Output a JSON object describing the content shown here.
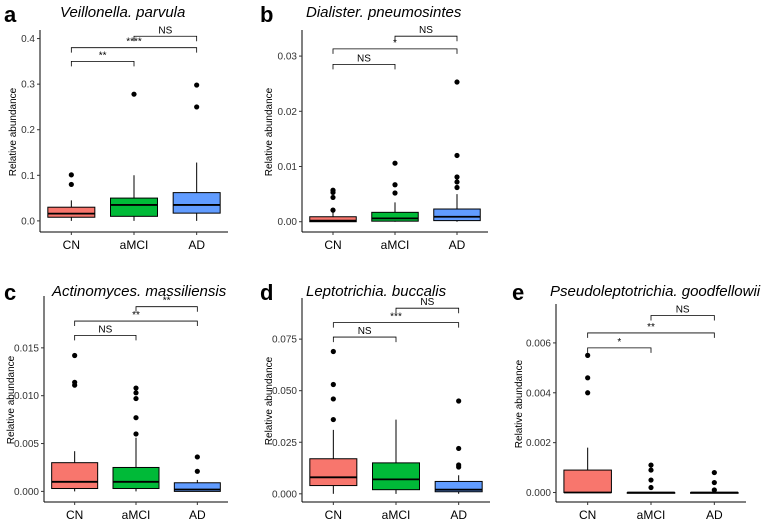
{
  "chart_data": [
    {
      "letter": "a",
      "type": "box",
      "title": "Veillonella. parvula",
      "ylabel": "Relative abundance",
      "categories": [
        "CN",
        "aMCI",
        "AD"
      ],
      "ylim": [
        -0.02,
        0.41
      ],
      "yticks": [
        "0.0",
        "0.1",
        "0.2",
        "0.3",
        "0.4"
      ],
      "ytick_values": [
        0,
        0.1,
        0.2,
        0.3,
        0.4
      ],
      "boxes": [
        {
          "group": "CN",
          "color": "#f8766d",
          "whisker_low": 0,
          "q1": 0.008,
          "median": 0.016,
          "q3": 0.03,
          "whisker_high": 0.045,
          "outliers": [
            0.08,
            0.101
          ]
        },
        {
          "group": "aMCI",
          "color": "#00ba38",
          "whisker_low": 0,
          "q1": 0.01,
          "median": 0.035,
          "q3": 0.05,
          "whisker_high": 0.1,
          "outliers": [
            0.278
          ]
        },
        {
          "group": "AD",
          "color": "#619cff",
          "whisker_low": 0,
          "q1": 0.017,
          "median": 0.035,
          "q3": 0.062,
          "whisker_high": 0.128,
          "outliers": [
            0.25,
            0.298
          ]
        }
      ],
      "comparisons": [
        {
          "from": "CN",
          "to": "aMCI",
          "label": "**",
          "y": 0.35
        },
        {
          "from": "CN",
          "to": "AD",
          "label": "****",
          "y": 0.38
        },
        {
          "from": "aMCI",
          "to": "AD",
          "label": "NS",
          "y": 0.405
        }
      ]
    },
    {
      "letter": "b",
      "type": "box",
      "title": "Dialister. pneumosintes",
      "ylabel": "Relative abundance",
      "categories": [
        "CN",
        "aMCI",
        "AD"
      ],
      "ylim": [
        -0.0015,
        0.034
      ],
      "yticks": [
        "0.00",
        "0.01",
        "0.02",
        "0.03"
      ],
      "ytick_values": [
        0,
        0.01,
        0.02,
        0.03
      ],
      "boxes": [
        {
          "group": "CN",
          "color": "#f8766d",
          "whisker_low": 0,
          "q1": 0.0,
          "median": 0.0002,
          "q3": 0.0009,
          "whisker_high": 0.002,
          "outliers": [
            0.0021,
            0.0044,
            0.0053,
            0.0057
          ]
        },
        {
          "group": "aMCI",
          "color": "#00ba38",
          "whisker_low": 0,
          "q1": 0.0001,
          "median": 0.0006,
          "q3": 0.0017,
          "whisker_high": 0.0035,
          "outliers": [
            0.0052,
            0.0067,
            0.0106
          ]
        },
        {
          "group": "AD",
          "color": "#619cff",
          "whisker_low": 0,
          "q1": 0.0002,
          "median": 0.0009,
          "q3": 0.0023,
          "whisker_high": 0.005,
          "outliers": [
            0.0062,
            0.0072,
            0.0081,
            0.012,
            0.0253
          ]
        }
      ],
      "comparisons": [
        {
          "from": "CN",
          "to": "aMCI",
          "label": "NS",
          "y": 0.0285
        },
        {
          "from": "CN",
          "to": "AD",
          "label": "*",
          "y": 0.0313
        },
        {
          "from": "aMCI",
          "to": "AD",
          "label": "NS",
          "y": 0.0336
        }
      ]
    },
    {
      "letter": "c",
      "type": "box",
      "title": "Actinomyces. massiliensis",
      "ylabel": "Relative abundance",
      "categories": [
        "CN",
        "aMCI",
        "AD"
      ],
      "ylim": [
        -0.0009,
        0.02
      ],
      "yticks": [
        "0.000",
        "0.005",
        "0.010",
        "0.015"
      ],
      "ytick_values": [
        0,
        0.005,
        0.01,
        0.015
      ],
      "boxes": [
        {
          "group": "CN",
          "color": "#f8766d",
          "whisker_low": 0,
          "q1": 0.0003,
          "median": 0.001,
          "q3": 0.003,
          "whisker_high": 0.0042,
          "outliers": [
            0.0111,
            0.0114,
            0.0142
          ]
        },
        {
          "group": "aMCI",
          "color": "#00ba38",
          "whisker_low": 0,
          "q1": 0.0003,
          "median": 0.001,
          "q3": 0.0025,
          "whisker_high": 0.0056,
          "outliers": [
            0.006,
            0.0077,
            0.0097,
            0.0103,
            0.0108
          ]
        },
        {
          "group": "AD",
          "color": "#619cff",
          "whisker_low": 0,
          "q1": 0.0,
          "median": 0.0002,
          "q3": 0.0009,
          "whisker_high": 0.0012,
          "outliers": [
            0.0021,
            0.0036
          ]
        }
      ],
      "comparisons": [
        {
          "from": "CN",
          "to": "aMCI",
          "label": "NS",
          "y": 0.0163
        },
        {
          "from": "CN",
          "to": "AD",
          "label": "**",
          "y": 0.0178
        },
        {
          "from": "aMCI",
          "to": "AD",
          "label": "**",
          "y": 0.0193
        }
      ]
    },
    {
      "letter": "d",
      "type": "box",
      "title": "Leptotrichia. buccalis",
      "ylabel": "Relative abundance",
      "categories": [
        "CN",
        "aMCI",
        "AD"
      ],
      "ylim": [
        -0.003,
        0.093
      ],
      "yticks": [
        "0.000",
        "0.025",
        "0.050",
        "0.075"
      ],
      "ytick_values": [
        0,
        0.025,
        0.05,
        0.075
      ],
      "boxes": [
        {
          "group": "CN",
          "color": "#f8766d",
          "whisker_low": 0,
          "q1": 0.004,
          "median": 0.008,
          "q3": 0.017,
          "whisker_high": 0.031,
          "outliers": [
            0.036,
            0.046,
            0.053,
            0.069
          ]
        },
        {
          "group": "aMCI",
          "color": "#00ba38",
          "whisker_low": 0,
          "q1": 0.002,
          "median": 0.007,
          "q3": 0.015,
          "whisker_high": 0.036,
          "outliers": []
        },
        {
          "group": "AD",
          "color": "#619cff",
          "whisker_low": 0,
          "q1": 0.001,
          "median": 0.002,
          "q3": 0.006,
          "whisker_high": 0.009,
          "outliers": [
            0.013,
            0.014,
            0.022,
            0.045
          ]
        }
      ],
      "comparisons": [
        {
          "from": "CN",
          "to": "aMCI",
          "label": "NS",
          "y": 0.076
        },
        {
          "from": "CN",
          "to": "AD",
          "label": "***",
          "y": 0.083
        },
        {
          "from": "aMCI",
          "to": "AD",
          "label": "NS",
          "y": 0.09
        }
      ]
    },
    {
      "letter": "e",
      "type": "box",
      "title": "Pseudoleptotrichia. goodfellowii",
      "ylabel": "Relative abundance",
      "categories": [
        "CN",
        "aMCI",
        "AD"
      ],
      "ylim": [
        -0.0003,
        0.0074
      ],
      "yticks": [
        "0.000",
        "0.002",
        "0.004",
        "0.006"
      ],
      "ytick_values": [
        0,
        0.002,
        0.004,
        0.006
      ],
      "boxes": [
        {
          "group": "CN",
          "color": "#f8766d",
          "whisker_low": 0,
          "q1": 0.0,
          "median": 0.0,
          "q3": 0.0009,
          "whisker_high": 0.0018,
          "outliers": [
            0.004,
            0.0046,
            0.0055
          ]
        },
        {
          "group": "aMCI",
          "color": "#00ba38",
          "whisker_low": 0,
          "q1": 0.0,
          "median": 0.0,
          "q3": 0.0,
          "whisker_high": 0.0,
          "outliers": [
            0.0002,
            0.0005,
            0.0009,
            0.0011
          ]
        },
        {
          "group": "AD",
          "color": "#619cff",
          "whisker_low": 0,
          "q1": 0.0,
          "median": 0.0,
          "q3": 0.0,
          "whisker_high": 0.0,
          "outliers": [
            0.0001,
            0.0004,
            0.0008
          ]
        }
      ],
      "comparisons": [
        {
          "from": "CN",
          "to": "aMCI",
          "label": "*",
          "y": 0.0058
        },
        {
          "from": "CN",
          "to": "AD",
          "label": "**",
          "y": 0.0064
        },
        {
          "from": "aMCI",
          "to": "AD",
          "label": "NS",
          "y": 0.0071
        }
      ]
    }
  ]
}
